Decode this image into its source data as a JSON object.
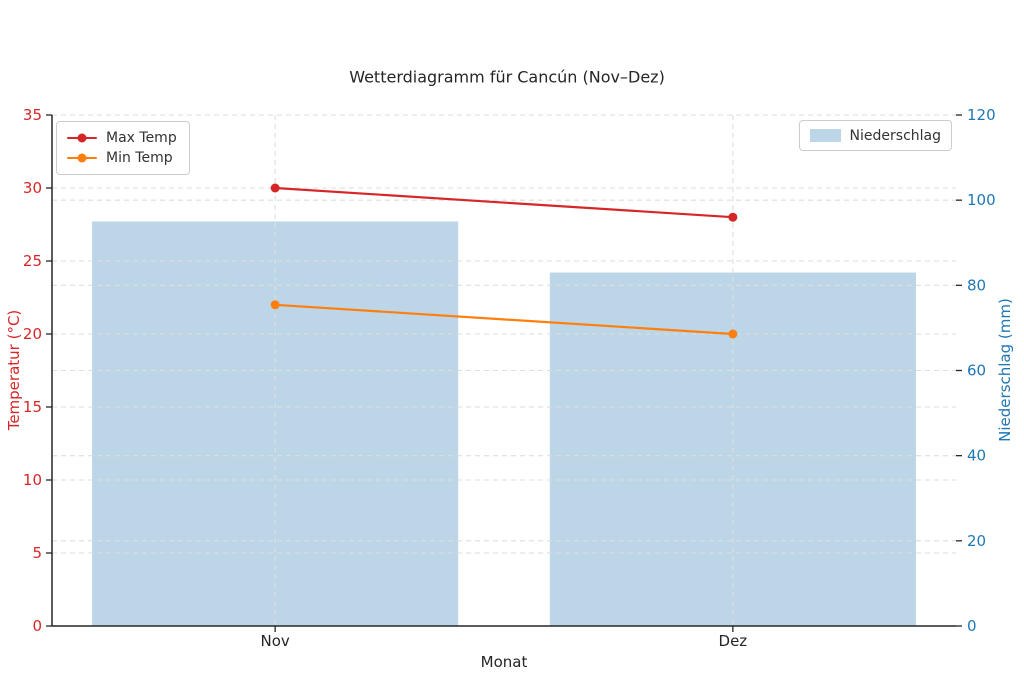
{
  "figure": {
    "background": "#ffffff"
  },
  "chart_data": {
    "type": "combo",
    "title": "Wetterdiagramm für Cancún (Nov–Dez)",
    "xlabel": "Monat",
    "ylabel_left": "Temperatur (°C)",
    "ylabel_right": "Niederschlag (mm)",
    "categories": [
      "Nov",
      "Dez"
    ],
    "series": [
      {
        "name": "Max Temp",
        "type": "line",
        "axis": "left",
        "color": "#d62728",
        "values": [
          30,
          28
        ]
      },
      {
        "name": "Min Temp",
        "type": "line",
        "axis": "left",
        "color": "#ff7f0e",
        "values": [
          22,
          20
        ]
      },
      {
        "name": "Niederschlag",
        "type": "bar",
        "axis": "right",
        "color": "#bcd6e8",
        "values": [
          95,
          83
        ]
      }
    ],
    "ylim_left": [
      0,
      35
    ],
    "yticks_left": [
      0,
      5,
      10,
      15,
      20,
      25,
      30,
      35
    ],
    "ylim_right": [
      0,
      120
    ],
    "yticks_right": [
      0,
      20,
      40,
      60,
      80,
      100,
      120
    ],
    "grid": true,
    "grid_style": "dashed",
    "legend_temp_position": "upper left",
    "legend_precip_position": "upper right",
    "axis_colors": {
      "left": "#d62728",
      "right": "#1f77b4",
      "spine": "#262626",
      "grid": "#dedede",
      "xtick_label": "#262626"
    }
  }
}
